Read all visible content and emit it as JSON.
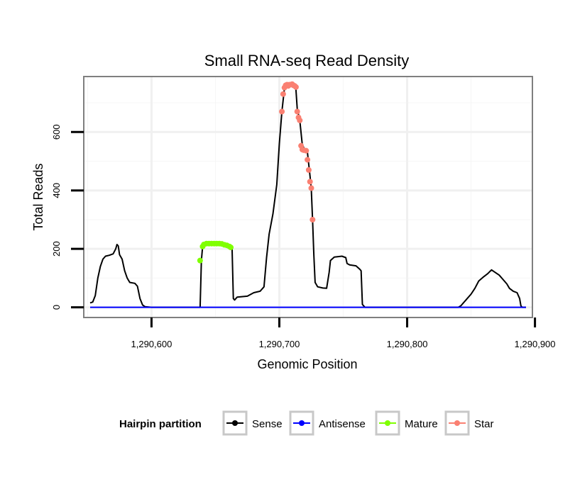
{
  "chart_data": {
    "type": "line",
    "title": "Small RNA-seq Read Density",
    "xlabel": "Genomic Position",
    "ylabel": "Total Reads",
    "xlim": [
      1290547,
      1290898
    ],
    "ylim": [
      -35,
      790
    ],
    "x_ticks": [
      1290600,
      1290700,
      1290800,
      1290900
    ],
    "x_tick_labels": [
      "1,290,600",
      "1,290,700",
      "1,290,800",
      "1,290,900"
    ],
    "y_ticks": [
      0,
      200,
      400,
      600
    ],
    "y_tick_labels": [
      "0",
      "200",
      "400",
      "600"
    ],
    "grid": true,
    "legend": {
      "title": "Hairpin partition",
      "position": "bottom",
      "entries": [
        {
          "name": "Sense",
          "color": "#000000"
        },
        {
          "name": "Antisense",
          "color": "#0000ff"
        },
        {
          "name": "Mature",
          "color": "#7fff00"
        },
        {
          "name": "Star",
          "color": "#fa8072"
        }
      ]
    },
    "series": [
      {
        "name": "Sense",
        "color": "#000000",
        "points": [
          [
            1290552,
            15
          ],
          [
            1290554,
            18
          ],
          [
            1290556,
            40
          ],
          [
            1290558,
            100
          ],
          [
            1290560,
            140
          ],
          [
            1290562,
            165
          ],
          [
            1290564,
            175
          ],
          [
            1290567,
            178
          ],
          [
            1290570,
            183
          ],
          [
            1290572,
            200
          ],
          [
            1290573,
            215
          ],
          [
            1290574,
            210
          ],
          [
            1290575,
            180
          ],
          [
            1290577,
            165
          ],
          [
            1290579,
            125
          ],
          [
            1290581,
            100
          ],
          [
            1290583,
            85
          ],
          [
            1290587,
            82
          ],
          [
            1290589,
            72
          ],
          [
            1290591,
            30
          ],
          [
            1290593,
            8
          ],
          [
            1290595,
            2
          ],
          [
            1290600,
            0
          ],
          [
            1290638,
            0
          ],
          [
            1290639,
            160
          ],
          [
            1290640,
            210
          ],
          [
            1290650,
            220
          ],
          [
            1290660,
            215
          ],
          [
            1290663,
            205
          ],
          [
            1290664,
            30
          ],
          [
            1290665,
            25
          ],
          [
            1290667,
            35
          ],
          [
            1290675,
            38
          ],
          [
            1290680,
            50
          ],
          [
            1290685,
            55
          ],
          [
            1290688,
            70
          ],
          [
            1290690,
            170
          ],
          [
            1290692,
            250
          ],
          [
            1290695,
            320
          ],
          [
            1290698,
            420
          ],
          [
            1290700,
            560
          ],
          [
            1290702,
            670
          ],
          [
            1290704,
            750
          ],
          [
            1290706,
            760
          ],
          [
            1290709,
            765
          ],
          [
            1290712,
            760
          ],
          [
            1290713,
            745
          ],
          [
            1290714,
            680
          ],
          [
            1290716,
            640
          ],
          [
            1290718,
            555
          ],
          [
            1290720,
            540
          ],
          [
            1290722,
            530
          ],
          [
            1290724,
            450
          ],
          [
            1290725,
            405
          ],
          [
            1290726,
            300
          ],
          [
            1290727,
            180
          ],
          [
            1290728,
            85
          ],
          [
            1290730,
            70
          ],
          [
            1290734,
            66
          ],
          [
            1290737,
            65
          ],
          [
            1290739,
            120
          ],
          [
            1290740,
            160
          ],
          [
            1290743,
            172
          ],
          [
            1290749,
            175
          ],
          [
            1290752,
            170
          ],
          [
            1290753,
            150
          ],
          [
            1290755,
            145
          ],
          [
            1290760,
            142
          ],
          [
            1290763,
            130
          ],
          [
            1290764,
            125
          ],
          [
            1290765,
            10
          ],
          [
            1290767,
            0
          ],
          [
            1290840,
            0
          ],
          [
            1290842,
            5
          ],
          [
            1290847,
            30
          ],
          [
            1290850,
            45
          ],
          [
            1290853,
            65
          ],
          [
            1290856,
            90
          ],
          [
            1290860,
            105
          ],
          [
            1290863,
            115
          ],
          [
            1290866,
            128
          ],
          [
            1290868,
            122
          ],
          [
            1290872,
            110
          ],
          [
            1290875,
            95
          ],
          [
            1290878,
            80
          ],
          [
            1290880,
            65
          ],
          [
            1290883,
            55
          ],
          [
            1290886,
            50
          ],
          [
            1290888,
            30
          ],
          [
            1290889,
            5
          ],
          [
            1290890,
            0
          ],
          [
            1290893,
            0
          ]
        ]
      },
      {
        "name": "Antisense",
        "color": "#0000ff",
        "points": [
          [
            1290552,
            0
          ],
          [
            1290893,
            0
          ]
        ]
      },
      {
        "name": "Mature",
        "color": "#7fff00",
        "markers": [
          [
            1290638,
            160
          ],
          [
            1290640,
            208
          ],
          [
            1290641,
            215
          ],
          [
            1290643,
            218
          ],
          [
            1290645,
            218
          ],
          [
            1290647,
            218
          ],
          [
            1290649,
            218
          ],
          [
            1290651,
            218
          ],
          [
            1290653,
            218
          ],
          [
            1290655,
            217
          ],
          [
            1290657,
            214
          ],
          [
            1290659,
            212
          ],
          [
            1290661,
            208
          ],
          [
            1290662,
            205
          ]
        ]
      },
      {
        "name": "Star",
        "color": "#fa8072",
        "markers": [
          [
            1290702,
            670
          ],
          [
            1290703,
            730
          ],
          [
            1290704,
            752
          ],
          [
            1290705,
            760
          ],
          [
            1290706,
            762
          ],
          [
            1290707,
            758
          ],
          [
            1290708,
            762
          ],
          [
            1290710,
            764
          ],
          [
            1290711,
            760
          ],
          [
            1290712,
            758
          ],
          [
            1290713,
            754
          ],
          [
            1290714,
            670
          ],
          [
            1290715,
            650
          ],
          [
            1290716,
            640
          ],
          [
            1290717,
            553
          ],
          [
            1290718,
            540
          ],
          [
            1290719,
            538
          ],
          [
            1290721,
            536
          ],
          [
            1290722,
            505
          ],
          [
            1290723,
            470
          ],
          [
            1290724,
            430
          ],
          [
            1290725,
            408
          ],
          [
            1290726,
            300
          ]
        ]
      }
    ]
  }
}
